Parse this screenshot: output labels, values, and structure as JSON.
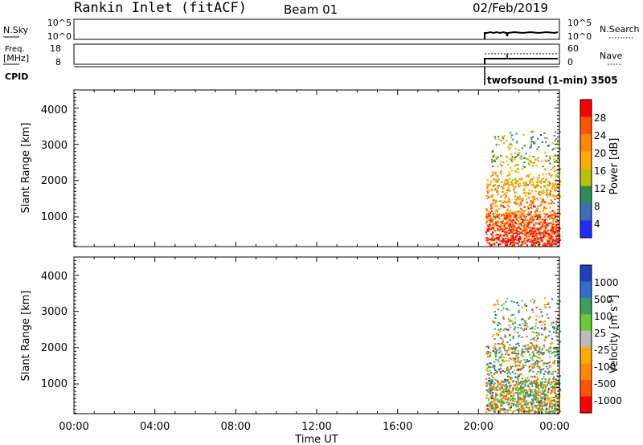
{
  "header": {
    "radar": "Rankin Inlet (fitACF)",
    "beam": "Beam 01",
    "date": "02/Feb/2019"
  },
  "status_panels": {
    "nsky_label": "N.Sky",
    "nsky_ticks": [
      "10^5",
      "10^0"
    ],
    "nsearch_label": "N.Search",
    "nsearch_ticks": [
      "10^5",
      "10^0"
    ],
    "freq_label": "Freq.",
    "freq_unit": "[MHz]",
    "freq_ticks": [
      "18",
      "8"
    ],
    "nave_label": "Nave",
    "nave_ticks": [
      "60",
      "0"
    ],
    "cpid_label": "CPID",
    "cpid_text": "twofsound (1-min) 3505"
  },
  "chart_data": [
    {
      "type": "heatmap",
      "ylabel": "Slant Range [km]",
      "yticks": [
        "4000",
        "3000",
        "2000",
        "1000"
      ],
      "ylim": [
        180,
        4500
      ],
      "colorbar_label": "Power [dB]",
      "colorbar_ticks": [
        "28",
        "24",
        "20",
        "16",
        "12",
        "8",
        "4"
      ],
      "colors": [
        "#ff0000",
        "#ff5500",
        "#ff8800",
        "#ffaa00",
        "#b8c200",
        "#2e8b57",
        "#3b6fb5",
        "#1f2bff"
      ]
    },
    {
      "type": "heatmap",
      "ylabel": "Slant Range [km]",
      "yticks": [
        "4000",
        "3000",
        "2000",
        "1000"
      ],
      "ylim": [
        180,
        4500
      ],
      "colorbar_label": "Velocity [m s",
      "colorbar_label_sup": "-1",
      "colorbar_label_end": "]",
      "colorbar_ticks": [
        "1000",
        "500",
        "100",
        "25",
        "-25",
        "-100",
        "-500",
        "-1000"
      ],
      "colors": [
        "#1f3fbf",
        "#2e6fd0",
        "#3aa05a",
        "#66cc33",
        "#bbbbbb",
        "#ffaa00",
        "#ff8800",
        "#ff5500",
        "#ff0000"
      ]
    }
  ],
  "time_axis": {
    "ticks": [
      "00:00",
      "04:00",
      "08:00",
      "12:00",
      "16:00",
      "20:00",
      "00:00"
    ],
    "label": "Time UT"
  }
}
